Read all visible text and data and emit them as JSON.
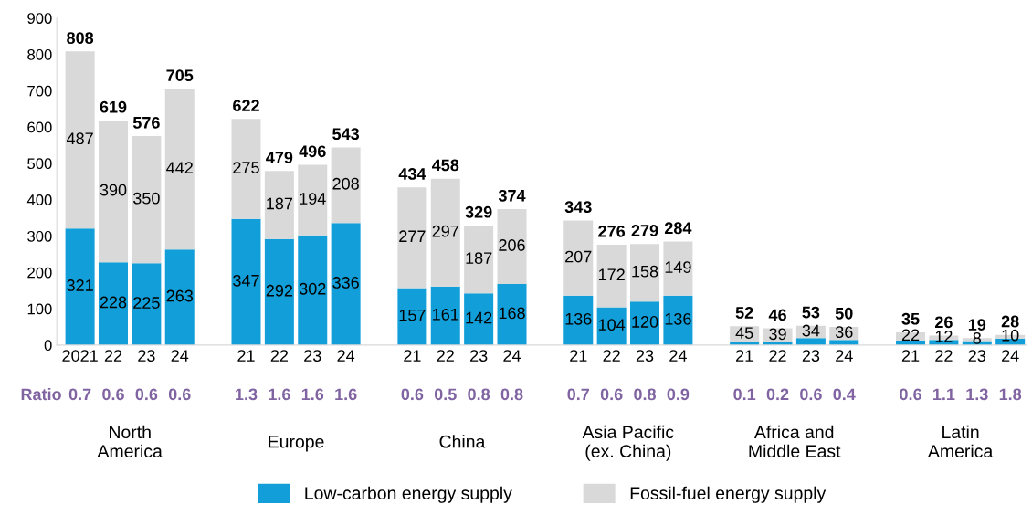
{
  "chart_data": {
    "type": "bar",
    "stacked": true,
    "categories": [
      "2021",
      "22",
      "23",
      "24",
      null,
      "21",
      "22",
      "23",
      "24",
      null,
      "21",
      "22",
      "23",
      "24",
      null,
      "21",
      "22",
      "23",
      "24",
      null,
      "21",
      "22",
      "23",
      "24",
      null,
      "21",
      "22",
      "23",
      "24"
    ],
    "series": [
      {
        "name": "Low-carbon energy supply",
        "color": "#129fd9",
        "values": [
          321,
          228,
          225,
          263,
          null,
          347,
          292,
          302,
          336,
          null,
          157,
          161,
          142,
          168,
          null,
          136,
          104,
          120,
          136,
          null,
          7,
          7,
          19,
          14,
          null,
          13,
          14,
          11,
          18
        ],
        "value_labels": [
          "321",
          "228",
          "225",
          "263",
          null,
          "347",
          "292",
          "302",
          "336",
          null,
          "157",
          "161",
          "142",
          "168",
          null,
          "136",
          "104",
          "120",
          "136",
          null,
          null,
          null,
          null,
          null,
          null,
          null,
          null,
          null,
          null
        ]
      },
      {
        "name": "Fossil-fuel energy supply",
        "color": "#d9d9d9",
        "values": [
          487,
          390,
          350,
          442,
          null,
          275,
          187,
          194,
          208,
          null,
          277,
          297,
          187,
          206,
          null,
          207,
          172,
          158,
          149,
          null,
          45,
          39,
          34,
          36,
          null,
          22,
          12,
          8,
          10
        ],
        "value_labels": [
          "487",
          "390",
          "350",
          "442",
          null,
          "275",
          "187",
          "194",
          "208",
          null,
          "277",
          "297",
          "187",
          "206",
          null,
          "207",
          "172",
          "158",
          "149",
          null,
          "45",
          "39",
          "34",
          "36",
          null,
          "22",
          "12",
          "8",
          "10"
        ]
      }
    ],
    "totals": [
      "808",
      "619",
      "576",
      "705",
      null,
      "622",
      "479",
      "496",
      "543",
      null,
      "434",
      "458",
      "329",
      "374",
      null,
      "343",
      "276",
      "279",
      "284",
      null,
      "52",
      "46",
      "53",
      "50",
      null,
      "35",
      "26",
      "19",
      "28"
    ],
    "ylim": [
      0,
      900
    ],
    "yticks": [
      0,
      100,
      200,
      300,
      400,
      500,
      600,
      700,
      800,
      900
    ],
    "grid": false,
    "legend": "bottom",
    "annotations": [
      "Ratio",
      "0.7",
      "0.6",
      "0.6",
      "0.6",
      "1.3",
      "1.6",
      "1.6",
      "1.6",
      "0.6",
      "0.5",
      "0.8",
      "0.8",
      "0.7",
      "0.6",
      "0.8",
      "0.9",
      "0.1",
      "0.2",
      "0.6",
      "0.4",
      "0.6",
      "1.1",
      "1.3",
      "1.8",
      "North\nAmerica",
      "Europe",
      "China",
      "Asia Pacific\n(ex. China)",
      "Africa and\nMiddle East",
      "Latin\nAmerica"
    ]
  }
}
